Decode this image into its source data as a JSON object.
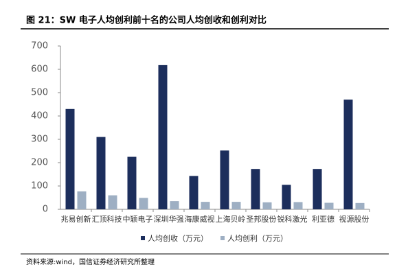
{
  "chart_data": {
    "type": "bar",
    "title": "图 21：SW 电子人均创利前十名的公司人均创收和创利对比",
    "source": "资料来源:wind，国信证券经济研究所整理",
    "categories": [
      "兆易创新",
      "汇顶科技",
      "中颖电子",
      "深圳华强",
      "海康威视",
      "上海贝岭",
      "圣邦股份",
      "锐科激光",
      "利亚德",
      "视源股份"
    ],
    "series": [
      {
        "name": "人均创收（万元）",
        "color": "#1c2e5c",
        "values": [
          430,
          310,
          225,
          618,
          143,
          252,
          173,
          105,
          173,
          470
        ]
      },
      {
        "name": "人均创利（万元）",
        "color": "#9eafc3",
        "values": [
          77,
          60,
          49,
          35,
          32,
          32,
          30,
          31,
          28,
          27
        ]
      }
    ],
    "ylim": [
      0,
      700
    ],
    "yticks": [
      0,
      100,
      200,
      300,
      400,
      500,
      600,
      700
    ],
    "legend": "bottom"
  }
}
